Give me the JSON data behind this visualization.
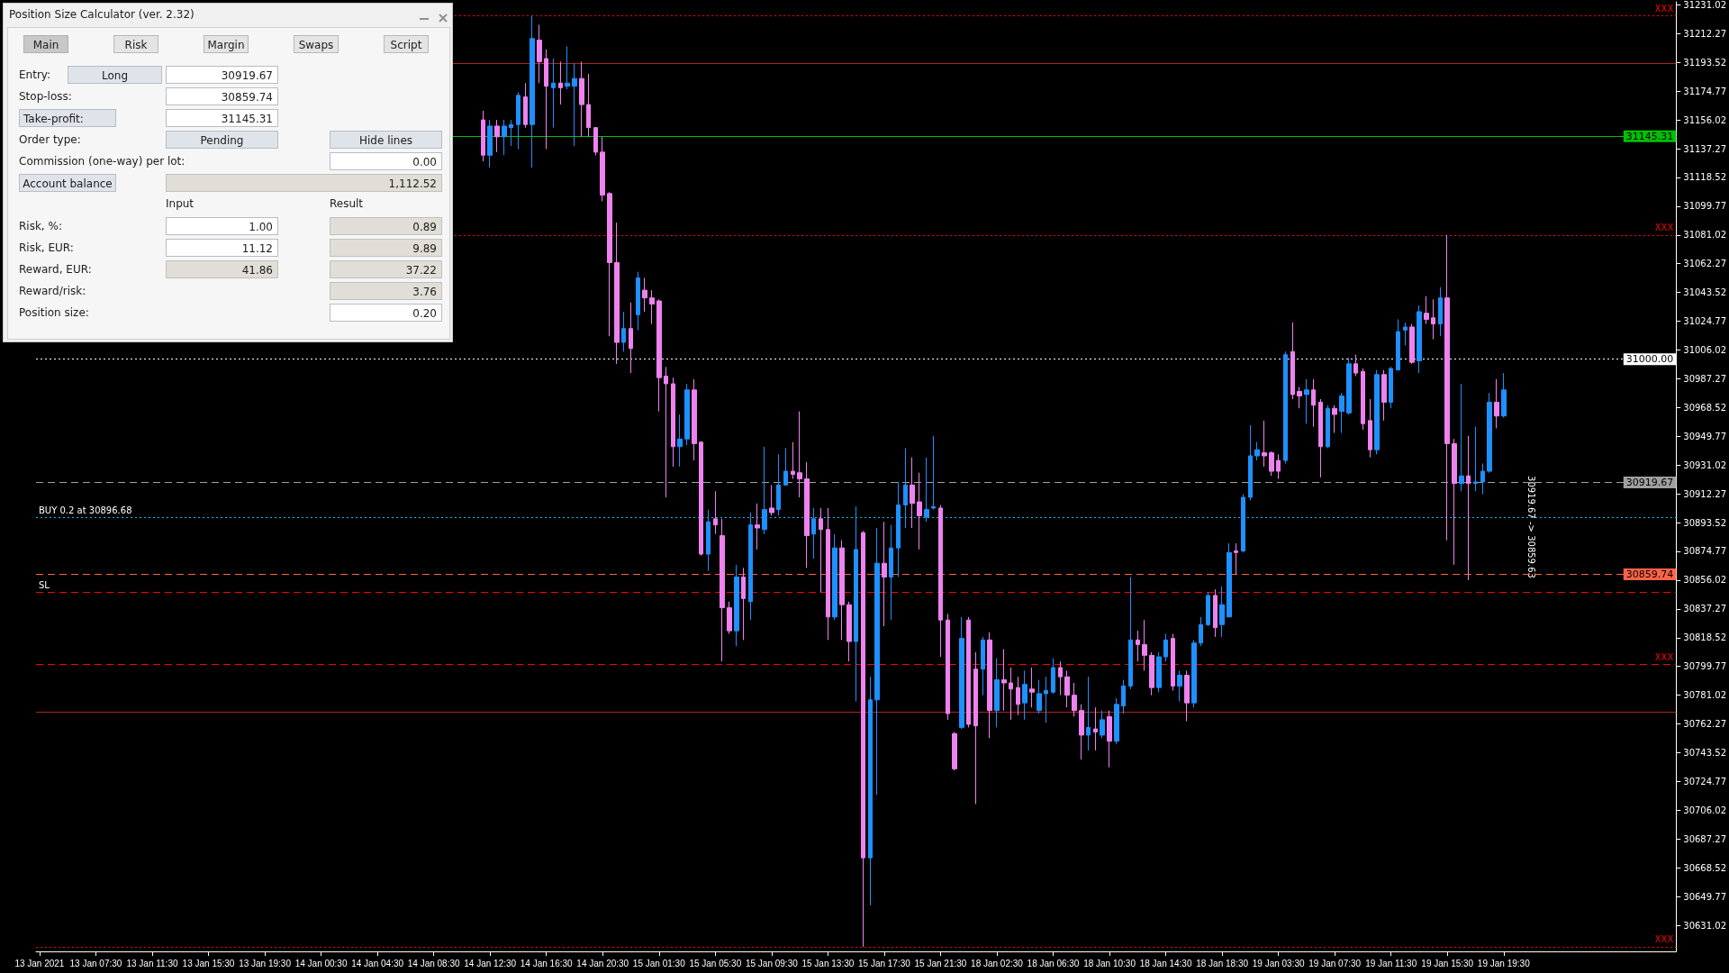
{
  "chart_data": [
    {
      "type": "candlestick",
      "categories": [
        "13 Jan 2021",
        null,
        null,
        null,
        null,
        null,
        null,
        null,
        "13 Jan 07:30",
        null,
        null,
        null,
        null,
        null,
        null,
        null,
        "13 Jan 11:30",
        null,
        null,
        null,
        null,
        null,
        null,
        null,
        "13 Jan 15:30",
        null,
        null,
        null,
        null,
        null,
        null,
        null,
        "13 Jan 19:30",
        null,
        null,
        null,
        null,
        null,
        null,
        null,
        "14 Jan 00:30",
        null,
        null,
        null,
        null,
        null,
        null,
        null,
        "14 Jan 04:30",
        null,
        null,
        null,
        null,
        null,
        null,
        null,
        "14 Jan 08:30",
        null,
        null,
        null,
        null,
        null,
        null,
        null,
        "14 Jan 12:30",
        null,
        null,
        null,
        null,
        null,
        null,
        null,
        "14 Jan 16:30",
        null,
        null,
        null,
        null,
        null,
        null,
        null,
        "14 Jan 20:30",
        null,
        null,
        null,
        null,
        null,
        null,
        null,
        "15 Jan 01:30",
        null,
        null,
        null,
        null,
        null,
        null,
        null,
        "15 Jan 05:30",
        null,
        null,
        null,
        null,
        null,
        null,
        null,
        "15 Jan 09:30",
        null,
        null,
        null,
        null,
        null,
        null,
        null,
        "15 Jan 13:30",
        null,
        null,
        null,
        null,
        null,
        null,
        null,
        "15 Jan 17:30",
        null,
        null,
        null,
        null,
        null,
        null,
        null,
        "15 Jan 21:30",
        null,
        null,
        null,
        null,
        null,
        null,
        null,
        "18 Jan 02:30",
        null,
        null,
        null,
        null,
        null,
        null,
        null,
        "18 Jan 06:30",
        null,
        null,
        null,
        null,
        null,
        null,
        null,
        "18 Jan 10:30",
        null,
        null,
        null,
        null,
        null,
        null,
        null,
        "18 Jan 14:30",
        null,
        null,
        null,
        null,
        null,
        null,
        null,
        "18 Jan 18:30",
        null,
        null,
        null,
        null,
        null,
        null,
        null,
        "19 Jan 03:30",
        null,
        null,
        null,
        null,
        null,
        null,
        null,
        "19 Jan 07:30",
        null,
        null,
        null,
        null,
        null,
        null,
        null,
        "19 Jan 11:30",
        null,
        null,
        null,
        null,
        null,
        null,
        null,
        "19 Jan 15:30",
        null,
        null,
        null,
        null,
        null,
        null,
        null,
        "19 Jan 19:30",
        null,
        null,
        null,
        null,
        null,
        null,
        null,
        null,
        null,
        null,
        null,
        null,
        null,
        null,
        null,
        null,
        null,
        null,
        null,
        null,
        null,
        null,
        null,
        null
      ],
      "series": [
        {
          "color": "#1e90ff",
          "ohlc": [
            null,
            null,
            null,
            null,
            null,
            null,
            null,
            null,
            null,
            null,
            null,
            null,
            null,
            null,
            null,
            null,
            null,
            null,
            null,
            null,
            null,
            null,
            null,
            null,
            null,
            null,
            null,
            null,
            null,
            null,
            null,
            null,
            null,
            null,
            null,
            null,
            null,
            null,
            null,
            null,
            null,
            null,
            null,
            null,
            null,
            null,
            null,
            null,
            null,
            null,
            null,
            null,
            null,
            null,
            null,
            null,
            null,
            null,
            null,
            null,
            null,
            null,
            null,
            null,
            [
              31133,
              31156,
              31125,
              31152
            ],
            null,
            [
              31145,
              31156,
              31133,
              31152
            ],
            [
              31151,
              31156,
              31139,
              31153
            ],
            [
              31153,
              31174,
              31137,
              31172
            ],
            null,
            [
              31153,
              31224,
              31125,
              31209
            ],
            null,
            null,
            [
              31177,
              31196,
              31151,
              31180
            ],
            null,
            [
              31178,
              31204,
              31176,
              31180
            ],
            [
              31178,
              31193,
              31139,
              31183
            ],
            null,
            null,
            null,
            null,
            null,
            null,
            [
              31011,
              31031,
              31005,
              31020
            ],
            null,
            [
              31029,
              31057,
              31019,
              31053
            ],
            null,
            null,
            null,
            null,
            null,
            [
              30943,
              30964,
              30930,
              30948
            ],
            [
              30948,
              30984,
              30944,
              30980
            ],
            null,
            null,
            [
              30873,
              30902,
              30862,
              30894
            ],
            null,
            null,
            null,
            [
              30823,
              30866,
              30813,
              30858
            ],
            null,
            [
              30842,
              30900,
              30830,
              30892
            ],
            null,
            [
              30889,
              30943,
              30886,
              30902
            ],
            null,
            [
              30902,
              30938,
              30898,
              30918
            ],
            [
              30918,
              30942,
              30918,
              30927
            ],
            null,
            null,
            null,
            [
              30886,
              30903,
              30870,
              30896
            ],
            null,
            null,
            [
              30832,
              30886,
              30830,
              30877
            ],
            null,
            null,
            [
              30816,
              30904,
              30777,
              30876
            ],
            null,
            [
              30675,
              30793,
              30644,
              30778
            ],
            [
              30778,
              30890,
              30716,
              30867
            ],
            null,
            [
              30858,
              30892,
              30830,
              30877
            ],
            [
              30877,
              30920,
              30858,
              30905
            ],
            [
              30905,
              30942,
              30890,
              30918
            ],
            null,
            null,
            [
              30897,
              30936,
              30894,
              30902
            ],
            [
              30903,
              30950,
              30902,
              30904
            ],
            null,
            null,
            null,
            [
              30760,
              30832,
              30759,
              30818
            ],
            null,
            null,
            [
              30798,
              30819,
              30781,
              30817
            ],
            null,
            [
              30771,
              30805,
              30760,
              30791
            ],
            null,
            null,
            null,
            [
              30776,
              30797,
              30765,
              30788
            ],
            null,
            [
              30771,
              30791,
              30769,
              30782
            ],
            [
              30782,
              30793,
              30763,
              30784
            ],
            [
              30783,
              30805,
              30782,
              30799
            ],
            null,
            null,
            null,
            null,
            [
              30755,
              30793,
              30745,
              30760
            ],
            null,
            [
              30755,
              30771,
              30753,
              30765
            ],
            null,
            [
              30751,
              30779,
              30749,
              30775
            ],
            [
              30774,
              30791,
              30769,
              30787
            ],
            [
              30787,
              30858,
              30785,
              30817
            ],
            null,
            null,
            null,
            [
              30786,
              30809,
              30783,
              30806
            ],
            [
              30806,
              30821,
              30803,
              30817
            ],
            null,
            [
              30787,
              30797,
              30777,
              30794
            ],
            null,
            [
              30776,
              30817,
              30773,
              30815
            ],
            [
              30815,
              30832,
              30813,
              30827
            ],
            [
              30827,
              30848,
              30826,
              30846
            ],
            null,
            [
              30827,
              30852,
              30819,
              30840
            ],
            [
              30832,
              30880,
              30832,
              30874
            ],
            null,
            [
              30875,
              30912,
              30874,
              30910
            ],
            [
              30910,
              30957,
              30908,
              30937
            ],
            [
              30937,
              30946,
              30934,
              30941
            ],
            null,
            null,
            null,
            [
              30934,
              31005,
              30932,
              31003
            ],
            null,
            null,
            [
              30977,
              30987,
              30958,
              30980
            ],
            null,
            null,
            [
              30943,
              30970,
              30942,
              30968
            ],
            null,
            [
              30966,
              30978,
              30952,
              30976
            ],
            [
              30965,
              31001,
              30964,
              30997
            ],
            null,
            null,
            null,
            [
              30941,
              30993,
              30938,
              30990
            ],
            null,
            [
              30972,
              30995,
              30968,
              30994
            ],
            [
              30993,
              31026,
              30993,
              31018
            ],
            [
              31019,
              31024,
              31009,
              31021
            ],
            null,
            [
              30999,
              31035,
              30991,
              31031
            ],
            null,
            null,
            [
              31023,
              31047,
              31015,
              31040
            ],
            null,
            null,
            [
              30919,
              30984,
              30914,
              30924
            ],
            null,
            [
              30919,
              30956,
              30914,
              30920
            ],
            [
              30920,
              30932,
              30912,
              30927
            ],
            [
              30927,
              30978,
              30926,
              30972
            ],
            null,
            [
              30963,
              30991,
              30962,
              30980
            ],
            null,
            null,
            null,
            null,
            null,
            null,
            null,
            null,
            null,
            null,
            null,
            null,
            null,
            null,
            null,
            null,
            null,
            null,
            null,
            null,
            null,
            null,
            null,
            null
          ]
        },
        {
          "color": "#ee82ee",
          "ohlc": [
            null,
            null,
            null,
            null,
            null,
            null,
            null,
            null,
            null,
            null,
            null,
            null,
            null,
            null,
            null,
            null,
            null,
            null,
            null,
            null,
            null,
            null,
            null,
            null,
            null,
            null,
            null,
            null,
            null,
            null,
            null,
            null,
            null,
            null,
            null,
            null,
            null,
            null,
            null,
            null,
            null,
            null,
            null,
            null,
            null,
            null,
            null,
            null,
            null,
            null,
            null,
            null,
            null,
            null,
            null,
            null,
            null,
            null,
            null,
            null,
            null,
            null,
            null,
            [
              31156,
              31162,
              31129,
              31133
            ],
            null,
            [
              31152,
              31156,
              31135,
              31145
            ],
            null,
            null,
            null,
            [
              31171,
              31180,
              31151,
              31153
            ],
            null,
            [
              31208,
              31218,
              31180,
              31194
            ],
            [
              31196,
              31202,
              31137,
              31178
            ],
            null,
            [
              31180,
              31194,
              31166,
              31177
            ],
            null,
            null,
            [
              31183,
              31194,
              31145,
              31166
            ],
            [
              31166,
              31186,
              31145,
              31151
            ],
            [
              31151,
              31151,
              31133,
              31135
            ],
            [
              31135,
              31145,
              31103,
              31107
            ],
            [
              31108,
              31109,
              31015,
              31063
            ],
            [
              31063,
              31089,
              30997,
              31011
            ],
            null,
            [
              31020,
              31037,
              30991,
              31007
            ],
            null,
            [
              31045,
              31053,
              31031,
              31040
            ],
            [
              31040,
              31045,
              31023,
              31036
            ],
            [
              31038,
              31039,
              30966,
              30988
            ],
            [
              30989,
              30995,
              30910,
              30984
            ],
            [
              30984,
              30988,
              30930,
              30943
            ],
            null,
            null,
            [
              30980,
              30987,
              30934,
              30945
            ],
            [
              30946,
              30946,
              30872,
              30873
            ],
            null,
            [
              30896,
              30914,
              30886,
              30892
            ],
            [
              30885,
              30896,
              30803,
              30838
            ],
            [
              30838,
              30842,
              30821,
              30823
            ],
            null,
            [
              30858,
              30864,
              30817,
              30844
            ],
            null,
            [
              30892,
              30906,
              30876,
              30890
            ],
            null,
            [
              30903,
              30918,
              30898,
              30900
            ],
            null,
            null,
            [
              30927,
              30946,
              30922,
              30925
            ],
            [
              30926,
              30966,
              30910,
              30922
            ],
            [
              30922,
              30933,
              30864,
              30885
            ],
            null,
            [
              30896,
              30903,
              30848,
              30889
            ],
            [
              30889,
              30903,
              30817,
              30832
            ],
            null,
            [
              30877,
              30882,
              30817,
              30840
            ],
            [
              30840,
              30842,
              30803,
              30816
            ],
            null,
            [
              30887,
              30888,
              30617,
              30675
            ],
            null,
            null,
            [
              30867,
              30894,
              30826,
              30858
            ],
            null,
            null,
            null,
            [
              30918,
              30936,
              30890,
              30906
            ],
            [
              30907,
              30926,
              30876,
              30898
            ],
            null,
            null,
            [
              30903,
              30905,
              30806,
              30830
            ],
            [
              30830,
              30834,
              30765,
              30769
            ],
            [
              30756,
              30757,
              30732,
              30733
            ],
            null,
            [
              30830,
              30832,
              30760,
              30762
            ],
            [
              30798,
              30809,
              30710,
              30761
            ],
            null,
            [
              30817,
              30822,
              30753,
              30771
            ],
            null,
            [
              30791,
              30811,
              30771,
              30789
            ],
            [
              30789,
              30799,
              30765,
              30785
            ],
            [
              30786,
              30793,
              30768,
              30775
            ],
            null,
            [
              30785,
              30799,
              30773,
              30783
            ],
            null,
            null,
            null,
            [
              30799,
              30803,
              30781,
              30793
            ],
            [
              30793,
              30797,
              30773,
              30781
            ],
            [
              30781,
              30789,
              30767,
              30771
            ],
            [
              30771,
              30775,
              30739,
              30755
            ],
            null,
            [
              30759,
              30773,
              30745,
              30757
            ],
            null,
            [
              30767,
              30771,
              30734,
              30751
            ],
            null,
            null,
            null,
            [
              30817,
              30823,
              30803,
              30814
            ],
            [
              30814,
              30830,
              30797,
              30807
            ],
            [
              30807,
              30809,
              30781,
              30786
            ],
            null,
            null,
            [
              30818,
              30821,
              30784,
              30787
            ],
            null,
            [
              30794,
              30797,
              30764,
              30776
            ],
            null,
            null,
            null,
            [
              30846,
              30850,
              30819,
              30825
            ],
            null,
            null,
            [
              30875,
              30880,
              30860,
              30874
            ],
            null,
            null,
            null,
            [
              30939,
              30960,
              30930,
              30937
            ],
            [
              30939,
              30940,
              30924,
              30927
            ],
            [
              30934,
              30938,
              30922,
              30927
            ],
            null,
            [
              31005,
              31024,
              30974,
              30977
            ],
            [
              30979,
              30982,
              30968,
              30976
            ],
            null,
            [
              30980,
              30987,
              30956,
              30970
            ],
            [
              30972,
              30974,
              30923,
              30943
            ],
            null,
            [
              30968,
              30970,
              30952,
              30964
            ],
            null,
            null,
            [
              30997,
              31003,
              30989,
              30991
            ],
            [
              30992,
              30994,
              30954,
              30958
            ],
            [
              30960,
              30974,
              30936,
              30941
            ],
            null,
            [
              30990,
              30993,
              30960,
              30972
            ],
            null,
            null,
            null,
            [
              31021,
              31023,
              30997,
              30998
            ],
            null,
            [
              31030,
              31041,
              31023,
              31026
            ],
            [
              31027,
              31039,
              31013,
              31023
            ],
            null,
            [
              31040,
              31081,
              30882,
              30945
            ],
            [
              30945,
              30948,
              30866,
              30919
            ],
            null,
            [
              30924,
              30950,
              30856,
              30919
            ],
            null,
            null,
            null,
            [
              30972,
              30987,
              30955,
              30963
            ],
            null,
            null,
            null,
            null,
            null,
            null,
            null,
            null,
            null,
            null,
            null,
            null,
            null,
            null,
            null,
            null,
            null,
            null,
            null,
            null,
            null,
            null,
            null,
            null,
            null
          ]
        }
      ],
      "ylim": [
        30614,
        31233
      ],
      "yticks": [
        30631.02,
        30649.77,
        30668.52,
        30687.27,
        30706.02,
        30724.77,
        30743.52,
        30762.27,
        30781.02,
        30799.77,
        30818.52,
        30837.27,
        30856.02,
        30874.77,
        30893.52,
        30912.27,
        30931.02,
        30949.77,
        30968.52,
        30987.27,
        31006.02,
        31024.77,
        31043.52,
        31062.27,
        31081.02,
        31099.77,
        31118.52,
        31137.27,
        31156.02,
        31174.77,
        31193.52,
        31212.27,
        31231.02
      ],
      "ref_lines": [
        {
          "axis": "y",
          "value": 31224,
          "label": "XXX",
          "color": "#ff0000",
          "line_style": "dotted"
        },
        {
          "axis": "y",
          "value": 31193,
          "color": "#b22222",
          "line_style": "solid"
        },
        {
          "axis": "y",
          "value": 31145.31,
          "label": "31145.31",
          "color": "#00c000",
          "line_style": "solid"
        },
        {
          "axis": "y",
          "value": 31081,
          "label": "XXX",
          "color": "#ff0000",
          "line_style": "dotted"
        },
        {
          "axis": "y",
          "value": 31000,
          "label": "31000.00",
          "color": "#ffffff",
          "line_style": "dotted"
        },
        {
          "axis": "y",
          "value": 30919.67,
          "label": "30919.67",
          "color": "#a0a0a0",
          "line_style": "dashed"
        },
        {
          "axis": "y",
          "value": 30896.68,
          "label": "BUY 0.2 at 30896.68",
          "color": "#00bfff",
          "line_style": "dotted"
        },
        {
          "axis": "y",
          "value": 30859.74,
          "label": "30859.74",
          "color": "#ff6347",
          "line_style": "dashed"
        },
        {
          "axis": "y",
          "value": 30848,
          "label": "SL",
          "color": "#ff0000",
          "line_style": "dashed"
        },
        {
          "axis": "y",
          "value": 30801,
          "label": "XXX",
          "color": "#ff0000",
          "line_style": "dashed"
        },
        {
          "axis": "y",
          "value": 30770,
          "color": "#b22222",
          "line_style": "solid"
        },
        {
          "axis": "y",
          "value": 30617,
          "label": "XXX",
          "color": "#ff0000",
          "line_style": "dotted"
        }
      ],
      "annotations": [
        "30919.67 -> 30859.63"
      ]
    },
    {
      "type": "other",
      "title": "Position Size Calculator (ver. 2.32)",
      "annotations": [
        "Main",
        "Risk",
        "Margin",
        "Swaps",
        "Script",
        "Entry:",
        "Long",
        "30919.67",
        "Stop-loss:",
        "30859.74",
        "Take-profit:",
        "31145.31",
        "Order type:",
        "Pending",
        "Hide lines",
        "Commission (one-way) per lot:",
        "0.00",
        "Account balance",
        "1,112.52",
        "Input",
        "Result",
        "Risk, %:",
        "1.00",
        "0.89",
        "Risk, EUR:",
        "11.12",
        "9.89",
        "Reward, EUR:",
        "41.86",
        "37.22",
        "Reward/risk:",
        "3.76",
        "Position size:",
        "0.20"
      ]
    }
  ]
}
